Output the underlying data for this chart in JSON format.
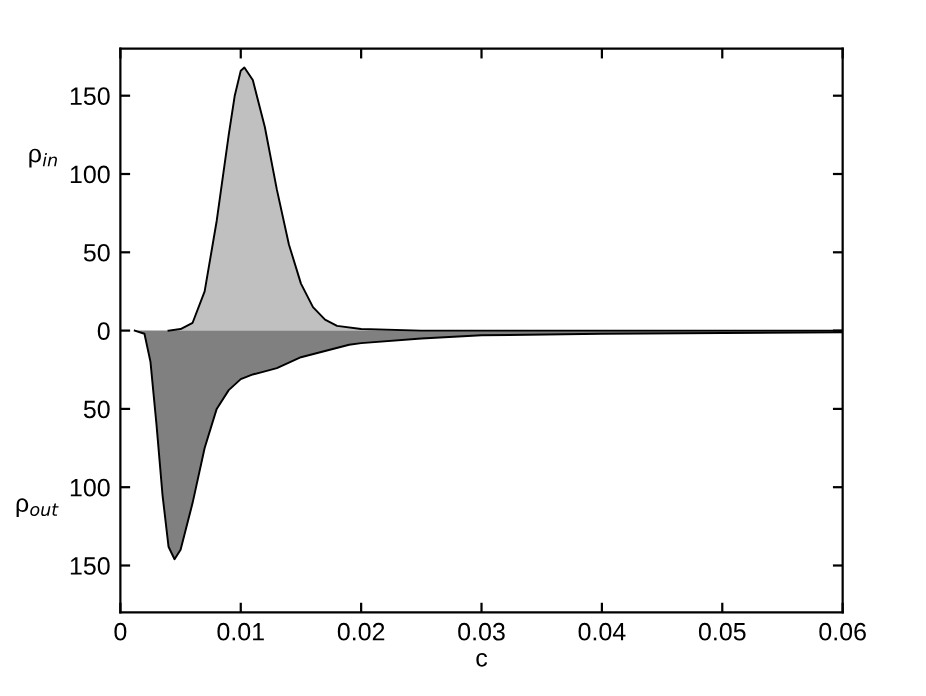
{
  "chart_data": {
    "type": "area",
    "xlabel": "c",
    "ylabel": "ρ$_{in}$",
    "annotations": [
      "ρ$_{out}$"
    ],
    "xlim": [
      0,
      0.06
    ],
    "xticks": [
      0,
      0.01,
      0.02,
      0.03,
      0.04,
      0.05,
      0.06
    ],
    "ylim": [
      -180,
      180
    ],
    "yticks": [
      {
        "value": -150,
        "label": "150"
      },
      {
        "value": -100,
        "label": "100"
      },
      {
        "value": -50,
        "label": "50"
      },
      0,
      50,
      100,
      150
    ],
    "grid": false,
    "legend": false,
    "series": [
      {
        "color": "#c0c0c0",
        "x": [
          0.004,
          0.005,
          0.006,
          0.007,
          0.008,
          0.009,
          0.0095,
          0.01,
          0.0103,
          0.011,
          0.012,
          0.013,
          0.014,
          0.015,
          0.016,
          0.017,
          0.018,
          0.02,
          0.025,
          0.06
        ],
        "values": [
          0,
          1,
          5,
          25,
          70,
          125,
          150,
          166,
          168,
          160,
          130,
          90,
          55,
          30,
          15,
          7,
          3,
          1,
          0,
          0
        ]
      },
      {
        "color": "#808080",
        "x": [
          0.0012,
          0.002,
          0.0025,
          0.003,
          0.0035,
          0.004,
          0.0045,
          0.005,
          0.006,
          0.007,
          0.008,
          0.009,
          0.01,
          0.011,
          0.012,
          0.013,
          0.015,
          0.019,
          0.02,
          0.025,
          0.03,
          0.04,
          0.06
        ],
        "values": [
          0,
          -2,
          -20,
          -60,
          -105,
          -138,
          -146,
          -140,
          -110,
          -75,
          -50,
          -38,
          -31,
          -28,
          -26,
          -24,
          -17,
          -9,
          -8,
          -5,
          -3,
          -2,
          -1
        ]
      }
    ]
  }
}
